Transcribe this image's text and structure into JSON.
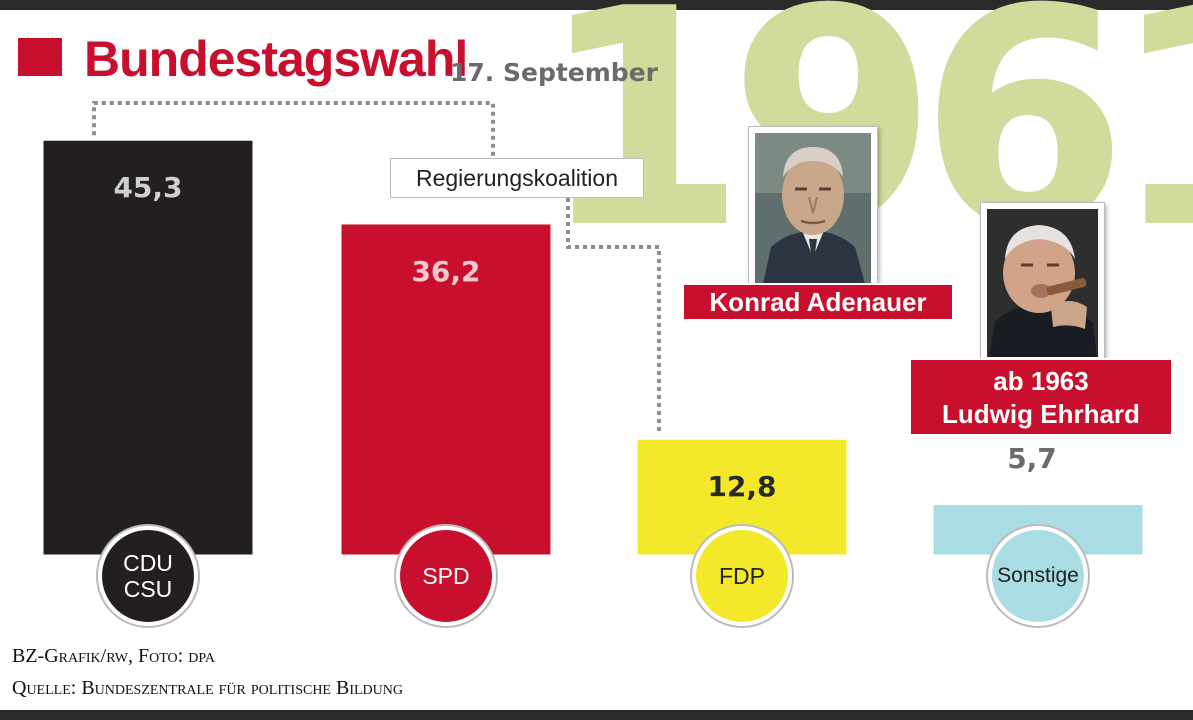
{
  "header": {
    "title": "Bundestagswahl",
    "subtitle": "17. September",
    "year": "1961"
  },
  "coalition": {
    "label": "Regierungskoalition"
  },
  "chart_data": {
    "type": "bar",
    "title": "Bundestagswahl",
    "ylim": [
      0,
      50
    ],
    "categories": [
      "CDU\nCSU",
      "SPD",
      "FDP",
      "Sonstige"
    ],
    "values": [
      45.3,
      36.2,
      12.8,
      5.7
    ],
    "value_labels": [
      "45,3",
      "36,2",
      "12,8",
      "5,7"
    ],
    "colors": [
      "#231f20",
      "#c8102e",
      "#f3e92a",
      "#a9dde3"
    ],
    "label_colors": [
      "#cfcfcf",
      "#f6c9cf",
      "#2a2a2a",
      "#6b6b6b"
    ],
    "coalition": [
      "CDU\nCSU",
      "FDP"
    ]
  },
  "parties": [
    {
      "lines": [
        "CDU",
        "CSU"
      ],
      "bg": "#231f20",
      "fg": "#ffffff"
    },
    {
      "lines": [
        "SPD"
      ],
      "bg": "#c8102e",
      "fg": "#ffffff"
    },
    {
      "lines": [
        "FDP"
      ],
      "bg": "#f3e92a",
      "fg": "#222222"
    },
    {
      "lines": [
        "Sonstige"
      ],
      "bg": "#a9dde3",
      "fg": "#222222"
    }
  ],
  "photos": {
    "adenauer": {
      "caption": "Konrad Adenauer"
    },
    "erhard": {
      "caption_line1": "ab 1963",
      "caption_line2": "Ludwig Ehrhard"
    }
  },
  "credits": {
    "line1": "BZ-Grafik/rw, Foto: dpa",
    "line2": "Quelle: Bundeszentrale für politische Bildung"
  }
}
